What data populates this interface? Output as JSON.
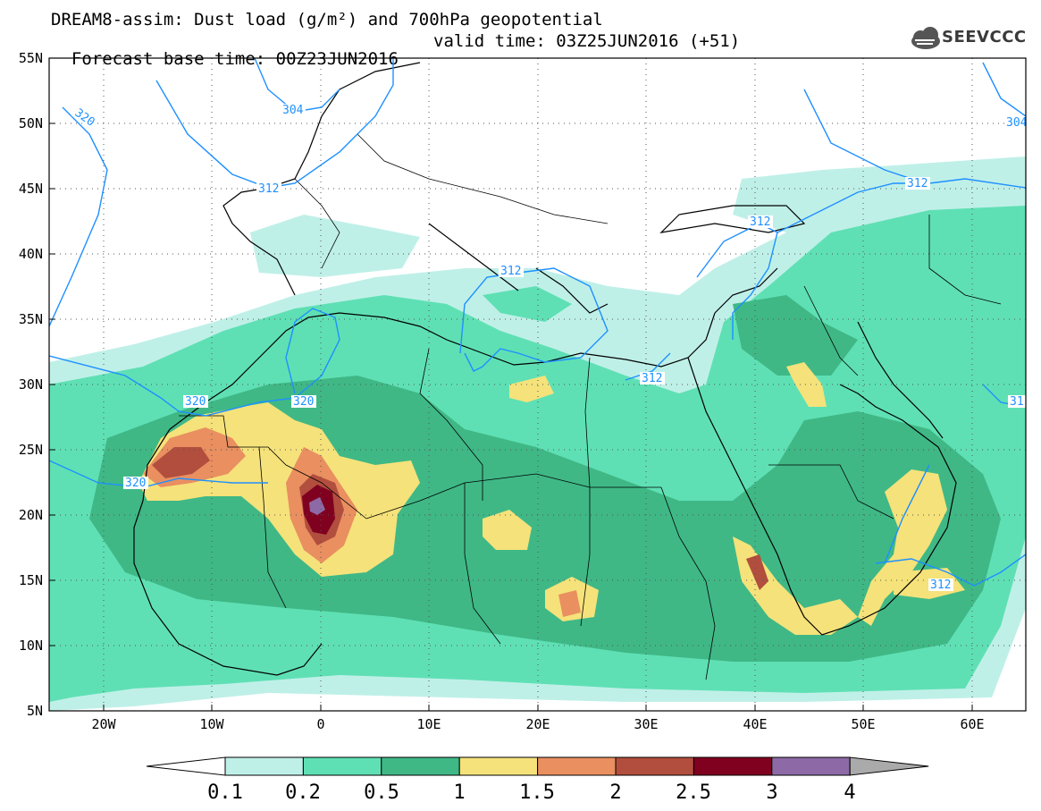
{
  "header": {
    "line1": "DREAM8-assim: Dust load (g/m²) and 700hPa geopotential",
    "base_time": "Forecast base time: 00Z23JUN2016",
    "valid_time": "valid time: 03Z25JUN2016 (+51)"
  },
  "logo": {
    "text": "SEEVCCC",
    "icon": "cloud-icon"
  },
  "map": {
    "lon_range": [
      -25,
      65
    ],
    "lat_range": [
      5,
      55
    ],
    "lat_ticks": [
      "5N",
      "10N",
      "15N",
      "20N",
      "25N",
      "30N",
      "35N",
      "40N",
      "45N",
      "50N",
      "55N"
    ],
    "lon_ticks": [
      "20W",
      "10W",
      "0",
      "10E",
      "20E",
      "30E",
      "40E",
      "50E",
      "60E"
    ],
    "grid": "dotted"
  },
  "contour_labels": [
    "320",
    "304",
    "312",
    "312",
    "312",
    "304",
    "312",
    "320",
    "320",
    "320",
    "312",
    "31",
    "312"
  ],
  "colorbar": {
    "levels": [
      "0.1",
      "0.2",
      "0.5",
      "1",
      "1.5",
      "2",
      "2.5",
      "3",
      "4"
    ],
    "colors": [
      "#bff0e8",
      "#5fe0b4",
      "#3fb886",
      "#f5e27a",
      "#e98f60",
      "#b24e3e",
      "#800020",
      "#8d6aa6"
    ],
    "under_color": "#ffffff",
    "over_color": "#aaaaaa"
  }
}
